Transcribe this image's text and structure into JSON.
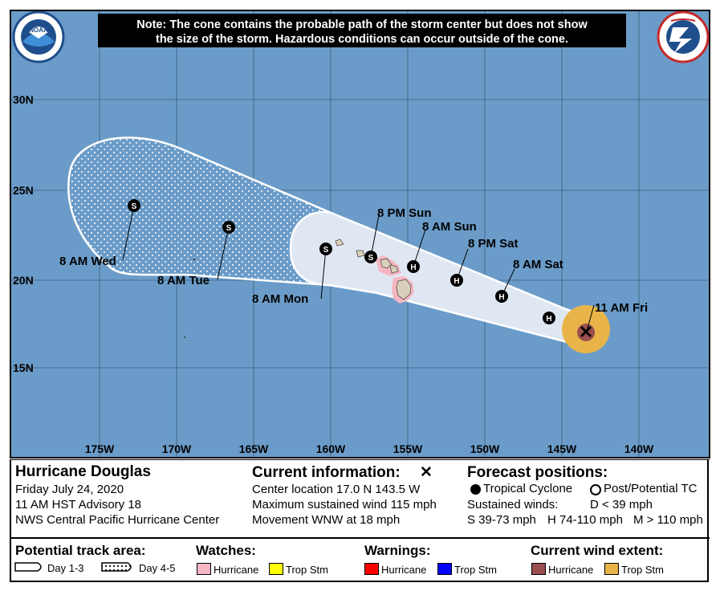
{
  "note": {
    "line1": "Note: The cone contains the probable path of the storm center but does not show",
    "line2": "the size of the storm. Hazardous conditions can occur outside of the cone."
  },
  "logos": {
    "left": "NOAA",
    "right": "NATIONAL WEATHER SERVICE"
  },
  "colors": {
    "ocean": "#6b9cc9",
    "cone_fill": "#dfe8f2",
    "land": "#d9d0bb",
    "hurricane_watch": "#f4b6c2",
    "trop_storm_watch": "#ffff00",
    "hurricane_warning": "#ff0000",
    "trop_storm_warning": "#0000ff",
    "hurricane_wind": "#9b4f4f",
    "trop_storm_wind": "#e8b449"
  },
  "axes": {
    "lat_labels": [
      "30N",
      "25N",
      "20N",
      "15N"
    ],
    "lon_labels": [
      "175W",
      "170W",
      "165W",
      "160W",
      "155W",
      "150W",
      "145W",
      "140W"
    ]
  },
  "forecast_points": [
    {
      "label": "11 AM Fri",
      "marker": "X",
      "lon": -143.5,
      "lat": 17.0
    },
    {
      "label": "",
      "marker": "H",
      "lon": -145.9,
      "lat": 17.9
    },
    {
      "label": "8 AM Sat",
      "marker": "H",
      "lon": -148.6,
      "lat": 19.1
    },
    {
      "label": "8 PM Sat",
      "marker": "H",
      "lon": -151.9,
      "lat": 20.0
    },
    {
      "label": "8 AM Sun",
      "marker": "H",
      "lon": -154.9,
      "lat": 20.8
    },
    {
      "label": "8 PM Sun",
      "marker": "S",
      "lon": -157.5,
      "lat": 21.3
    },
    {
      "label": "8 AM Mon",
      "marker": "S",
      "lon": -160.0,
      "lat": 21.9
    },
    {
      "label": "8 AM Tue",
      "marker": "S",
      "lon": -166.9,
      "lat": 23.0
    },
    {
      "label": "8 AM Wed",
      "marker": "S",
      "lon": -172.9,
      "lat": 24.2
    }
  ],
  "storm": {
    "name": "Hurricane Douglas",
    "date": "Friday July 24, 2020",
    "advisory": "11 AM HST Advisory 18",
    "center": "NWS Central Pacific Hurricane Center"
  },
  "current_info": {
    "title": "Current information:",
    "marker": "✕",
    "location": "Center location 17.0 N 143.5 W",
    "wind": "Maximum sustained wind 115 mph",
    "movement": "Movement WNW at 18 mph"
  },
  "forecast_legend": {
    "title": "Forecast positions:",
    "tropical": "Tropical Cyclone",
    "post": "Post/Potential TC",
    "sustained": "Sustained winds:",
    "d": "D < 39 mph",
    "s": "S 39-73 mph",
    "h": "H 74-110 mph",
    "m": "M > 110 mph"
  },
  "bottom_legend": {
    "track_title": "Potential track area:",
    "day13": "Day 1-3",
    "day45": "Day 4-5",
    "watches_title": "Watches:",
    "warnings_title": "Warnings:",
    "wind_title": "Current wind extent:",
    "hurricane": "Hurricane",
    "trop_stm": "Trop Stm"
  }
}
